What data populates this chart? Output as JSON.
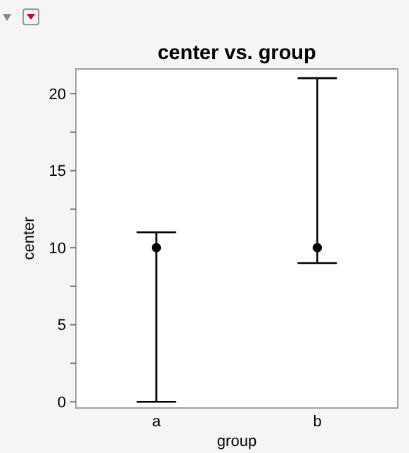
{
  "chart_data": {
    "type": "scatter",
    "title": "center vs. group",
    "xlabel": "group",
    "ylabel": "center",
    "categories": [
      "a",
      "b"
    ],
    "values": [
      10,
      10
    ],
    "errors": [
      [
        0,
        11
      ],
      [
        9,
        21
      ]
    ],
    "color": "#000000",
    "marker": "circle",
    "ylim": [
      -0.4,
      21.6
    ],
    "yticks": [
      0,
      {
        "value": 2.5,
        "label": null
      },
      5,
      {
        "value": 7.5,
        "label": null
      },
      10,
      {
        "value": 12.5,
        "label": null
      },
      15,
      {
        "value": 17.5,
        "label": null
      },
      20
    ],
    "grid": false
  }
}
